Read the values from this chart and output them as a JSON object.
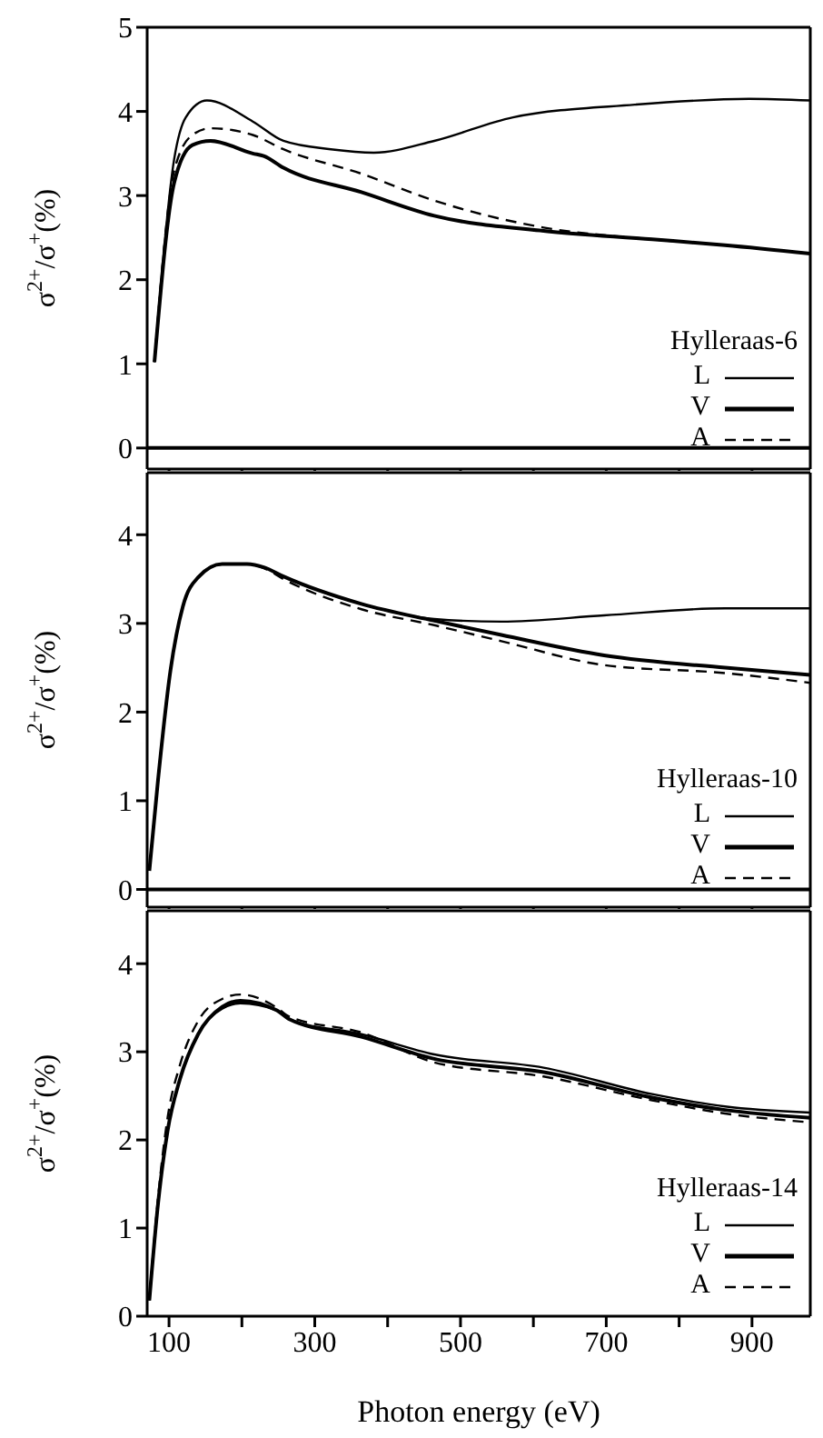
{
  "chart_data": [
    {
      "type": "line",
      "ylabel": "σ$^{2+}$/σ$^{+}$(%)",
      "legend_title": "Hylleraas-6",
      "legend": "bottom right",
      "tick_labels": "y",
      "xlim": [
        70,
        980
      ],
      "xticks": [
        {
          "value": 100,
          "label": null
        },
        {
          "value": 200,
          "label": null
        },
        {
          "value": 300,
          "label": null
        },
        {
          "value": 400,
          "label": null
        },
        {
          "value": 500,
          "label": null
        },
        {
          "value": 600,
          "label": null
        },
        {
          "value": 700,
          "label": null
        },
        {
          "value": 800,
          "label": null
        },
        {
          "value": 900,
          "label": null
        }
      ],
      "ylim": [
        -0.25,
        5
      ],
      "yticks": [
        0,
        1,
        2,
        3,
        4,
        5
      ],
      "ref_lines": [
        {
          "axis": "y",
          "value": 0,
          "color": "#000000"
        }
      ],
      "series": [
        {
          "name": "L",
          "color": "#000000",
          "line_style": "solid",
          "x": [
            80,
            107,
            123,
            152,
            215,
            257,
            322,
            381,
            464,
            572,
            739,
            896,
            980
          ],
          "values": [
            1.02,
            3.43,
            3.93,
            4.13,
            3.88,
            3.65,
            3.55,
            3.51,
            3.65,
            3.93,
            4.08,
            4.15,
            4.13
          ]
        },
        {
          "name": "V",
          "color": "#000000",
          "line_style": "solid",
          "x": [
            80,
            107,
            132,
            157,
            215,
            230,
            257,
            364,
            464,
            614,
            763,
            863,
            980
          ],
          "values": [
            1.02,
            3.15,
            3.6,
            3.65,
            3.5,
            3.47,
            3.33,
            3.04,
            2.76,
            2.58,
            2.48,
            2.41,
            2.31
          ]
        },
        {
          "name": "A",
          "color": "#000000",
          "line_style": "dashed",
          "x": [
            80,
            107,
            132,
            157,
            215,
            257,
            364,
            464,
            614,
            763,
            863,
            980
          ],
          "values": [
            1.02,
            3.29,
            3.72,
            3.8,
            3.72,
            3.55,
            3.26,
            2.94,
            2.62,
            2.48,
            2.41,
            2.31
          ]
        }
      ]
    },
    {
      "type": "line",
      "ylabel": "σ$^{2+}$/σ$^{+}$(%)",
      "legend_title": "Hylleraas-10",
      "legend": "bottom right",
      "tick_labels": "y",
      "xlim": [
        70,
        980
      ],
      "xticks": [
        {
          "value": 100,
          "label": null
        },
        {
          "value": 200,
          "label": null
        },
        {
          "value": 300,
          "label": null
        },
        {
          "value": 400,
          "label": null
        },
        {
          "value": 500,
          "label": null
        },
        {
          "value": 600,
          "label": null
        },
        {
          "value": 700,
          "label": null
        },
        {
          "value": 800,
          "label": null
        },
        {
          "value": 900,
          "label": null
        }
      ],
      "ylim": [
        -0.2,
        4.7
      ],
      "yticks": [
        0,
        1,
        2,
        3,
        4
      ],
      "ref_lines": [
        {
          "axis": "y",
          "value": 0,
          "color": "#000000"
        }
      ],
      "series": [
        {
          "name": "L",
          "color": "#000000",
          "line_style": "solid",
          "x": [
            73,
            85,
            102,
            119,
            140,
            173,
            207,
            231,
            257,
            364,
            464,
            556,
            697,
            863,
            980
          ],
          "values": [
            0.21,
            1.24,
            2.47,
            3.19,
            3.52,
            3.67,
            3.67,
            3.63,
            3.53,
            3.22,
            3.05,
            3.02,
            3.09,
            3.17,
            3.17
          ]
        },
        {
          "name": "V",
          "color": "#000000",
          "line_style": "solid",
          "x": [
            73,
            85,
            102,
            119,
            140,
            173,
            207,
            231,
            257,
            364,
            464,
            556,
            697,
            863,
            980
          ],
          "values": [
            0.21,
            1.24,
            2.47,
            3.19,
            3.52,
            3.67,
            3.67,
            3.63,
            3.53,
            3.22,
            3.03,
            2.87,
            2.64,
            2.5,
            2.42
          ]
        },
        {
          "name": "A",
          "color": "#000000",
          "line_style": "dashed",
          "x": [
            73,
            85,
            102,
            119,
            140,
            173,
            207,
            231,
            257,
            364,
            464,
            556,
            697,
            863,
            980
          ],
          "values": [
            0.21,
            1.24,
            2.47,
            3.19,
            3.52,
            3.67,
            3.67,
            3.62,
            3.5,
            3.16,
            2.98,
            2.8,
            2.53,
            2.44,
            2.33
          ]
        }
      ]
    },
    {
      "type": "line",
      "ylabel": "σ$^{2+}$/σ$^{+}$(%)",
      "xlabel": "Photon energy (eV)",
      "legend_title": "Hylleraas-14",
      "legend": "bottom right",
      "xlim": [
        70,
        980
      ],
      "xticks": [
        100,
        {
          "value": 200,
          "label": null
        },
        300,
        {
          "value": 400,
          "label": null
        },
        500,
        {
          "value": 600,
          "label": null
        },
        700,
        {
          "value": 800,
          "label": null
        },
        900
      ],
      "ylim": [
        0,
        4.6
      ],
      "yticks": [
        0,
        1,
        2,
        3,
        4
      ],
      "series": [
        {
          "name": "L",
          "color": "#000000",
          "line_style": "solid",
          "x": [
            73,
            85,
            98,
            115,
            140,
            173,
            198,
            248,
            265,
            364,
            464,
            614,
            763,
            863,
            980
          ],
          "values": [
            0.18,
            1.28,
            2.1,
            2.69,
            3.2,
            3.49,
            3.55,
            3.47,
            3.37,
            3.2,
            2.97,
            2.82,
            2.52,
            2.38,
            2.31
          ]
        },
        {
          "name": "V",
          "color": "#000000",
          "line_style": "solid",
          "x": [
            73,
            85,
            98,
            115,
            140,
            173,
            198,
            248,
            265,
            364,
            464,
            614,
            763,
            863,
            980
          ],
          "values": [
            0.18,
            1.28,
            2.1,
            2.69,
            3.2,
            3.51,
            3.58,
            3.47,
            3.37,
            3.17,
            2.92,
            2.77,
            2.48,
            2.34,
            2.25
          ]
        },
        {
          "name": "A",
          "color": "#000000",
          "line_style": "dashed",
          "x": [
            73,
            85,
            98,
            115,
            140,
            173,
            198,
            248,
            265,
            364,
            464,
            614,
            763,
            863,
            980
          ],
          "values": [
            0.18,
            1.35,
            2.25,
            2.85,
            3.35,
            3.6,
            3.65,
            3.5,
            3.4,
            3.22,
            2.88,
            2.72,
            2.45,
            2.3,
            2.2
          ]
        }
      ]
    }
  ]
}
